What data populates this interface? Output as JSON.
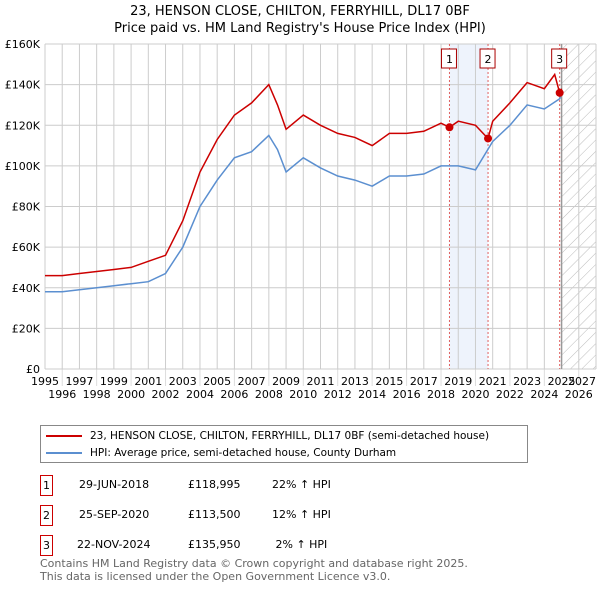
{
  "title_line1": "23, HENSON CLOSE, CHILTON, FERRYHILL, DL17 0BF",
  "title_line2": "Price paid vs. HM Land Registry's House Price Index (HPI)",
  "legend": {
    "property": "23, HENSON CLOSE, CHILTON, FERRYHILL, DL17 0BF (semi-detached house)",
    "hpi": "HPI: Average price, semi-detached house, County Durham"
  },
  "sales": [
    {
      "num": "1",
      "date": "29-JUN-2018",
      "price": "£118,995",
      "delta": "22% ↑ HPI"
    },
    {
      "num": "2",
      "date": "25-SEP-2020",
      "price": "£113,500",
      "delta": "12% ↑ HPI"
    },
    {
      "num": "3",
      "date": "22-NOV-2024",
      "price": "£135,950",
      "delta": " 2% ↑ HPI"
    }
  ],
  "footer": {
    "line1": "Contains HM Land Registry data © Crown copyright and database right 2025.",
    "line2": "This data is licensed under the Open Government Licence v3.0."
  },
  "chart_data": {
    "type": "line",
    "xlim": [
      1995,
      2027
    ],
    "ylim": [
      0,
      160000
    ],
    "xticks": [
      "1995",
      "1996",
      "1997",
      "1998",
      "1999",
      "2000",
      "2001",
      "2002",
      "2003",
      "2004",
      "2005",
      "2006",
      "2007",
      "2008",
      "2009",
      "2010",
      "2011",
      "2012",
      "2013",
      "2014",
      "2015",
      "2016",
      "2017",
      "2018",
      "2019",
      "2020",
      "2021",
      "2022",
      "2023",
      "2024",
      "2025",
      "2026",
      "2027"
    ],
    "yticks": [
      {
        "v": 0,
        "l": "£0"
      },
      {
        "v": 20000,
        "l": "£20K"
      },
      {
        "v": 40000,
        "l": "£40K"
      },
      {
        "v": 60000,
        "l": "£60K"
      },
      {
        "v": 80000,
        "l": "£80K"
      },
      {
        "v": 100000,
        "l": "£100K"
      },
      {
        "v": 120000,
        "l": "£120K"
      },
      {
        "v": 140000,
        "l": "£140K"
      },
      {
        "v": 160000,
        "l": "£160K"
      }
    ],
    "colors": {
      "property": "#cc0000",
      "hpi": "#5b8fd0",
      "shade": "#eef3fc"
    },
    "forecast_start": 2025,
    "shaded_range": [
      2018.49,
      2020.73
    ],
    "sale_points": [
      {
        "label": "1",
        "x": 2018.49,
        "y": 118995
      },
      {
        "label": "2",
        "x": 2020.73,
        "y": 113500
      },
      {
        "label": "3",
        "x": 2024.89,
        "y": 135950
      }
    ],
    "series": [
      {
        "name": "23, HENSON CLOSE, CHILTON, FERRYHILL, DL17 0BF (semi-detached house)",
        "x": [
          1995,
          1996,
          1997,
          1998,
          1999,
          2000,
          2001,
          2002,
          2003,
          2004,
          2005,
          2006,
          2007,
          2008,
          2008.5,
          2009,
          2010,
          2011,
          2012,
          2013,
          2014,
          2015,
          2016,
          2017,
          2018,
          2018.49,
          2019,
          2020,
          2020.73,
          2021,
          2022,
          2023,
          2024,
          2024.6,
          2024.89,
          2025
        ],
        "y": [
          46000,
          46000,
          47000,
          48000,
          49000,
          50000,
          53000,
          56000,
          73000,
          97000,
          113000,
          125000,
          131000,
          140000,
          130000,
          118000,
          125000,
          120000,
          116000,
          114000,
          110000,
          116000,
          116000,
          117000,
          121000,
          118995,
          122000,
          120000,
          113500,
          122000,
          131000,
          141000,
          138000,
          145000,
          135950,
          138000
        ]
      },
      {
        "name": "HPI: Average price, semi-detached house, County Durham",
        "x": [
          1995,
          1996,
          1997,
          1998,
          1999,
          2000,
          2001,
          2002,
          2003,
          2004,
          2005,
          2006,
          2007,
          2008,
          2008.5,
          2009,
          2010,
          2011,
          2012,
          2013,
          2014,
          2015,
          2016,
          2017,
          2018,
          2019,
          2020,
          2021,
          2022,
          2023,
          2024,
          2024.89,
          2025
        ],
        "y": [
          38000,
          38000,
          39000,
          40000,
          41000,
          42000,
          43000,
          47000,
          60000,
          80000,
          93000,
          104000,
          107000,
          115000,
          108000,
          97000,
          104000,
          99000,
          95000,
          93000,
          90000,
          95000,
          95000,
          96000,
          100000,
          100000,
          98000,
          112000,
          120000,
          130000,
          128000,
          133000,
          136000
        ]
      }
    ]
  }
}
